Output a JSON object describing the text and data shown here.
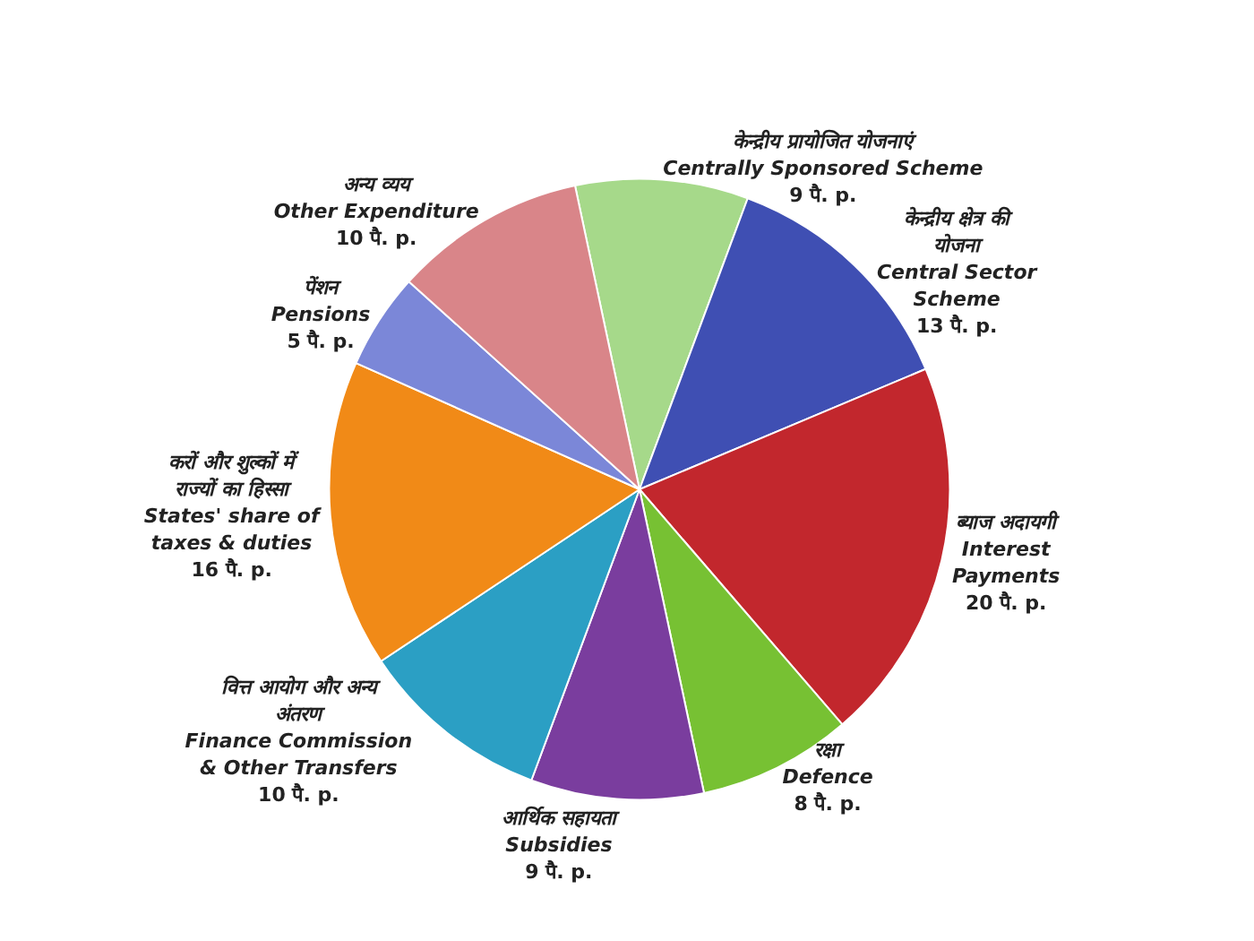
{
  "chart_data": {
    "type": "pie",
    "categories": [
      "केन्द्रीय प्रायोजित योजनाएं\nCentrally Sponsored Scheme",
      "केन्द्रीय क्षेत्र की\nयोजना\nCentral Sector\nScheme",
      "ब्याज अदायगी\nInterest\nPayments",
      "रक्षा\nDefence",
      "आर्थिक सहायता\nSubsidies",
      "वित्त आयोग और अन्य\nअंतरण\nFinance Commission\n& Other Transfers",
      "करों और शुल्कों में\nराज्यों का हिस्सा\nStates' share of\ntaxes & duties",
      "पेंशन\nPensions",
      "अन्य व्यय\nOther Expenditure"
    ],
    "values": [
      9,
      13,
      20,
      8,
      9,
      10,
      16,
      5,
      10
    ],
    "value_labels": [
      "9 पै. p.",
      "13 पै. p.",
      "20 पै. p.",
      "8 पै. p.",
      "9 पै. p.",
      "10 पै. p.",
      "16 पै. p.",
      "5 पै. p.",
      "10 पै. p."
    ],
    "colors": [
      "#a6d98a",
      "#3f4fb3",
      "#c2272d",
      "#77c133",
      "#7a3d9e",
      "#2b9fc4",
      "#f18a17",
      "#7b87d8",
      "#d98589"
    ],
    "legend": false
  }
}
